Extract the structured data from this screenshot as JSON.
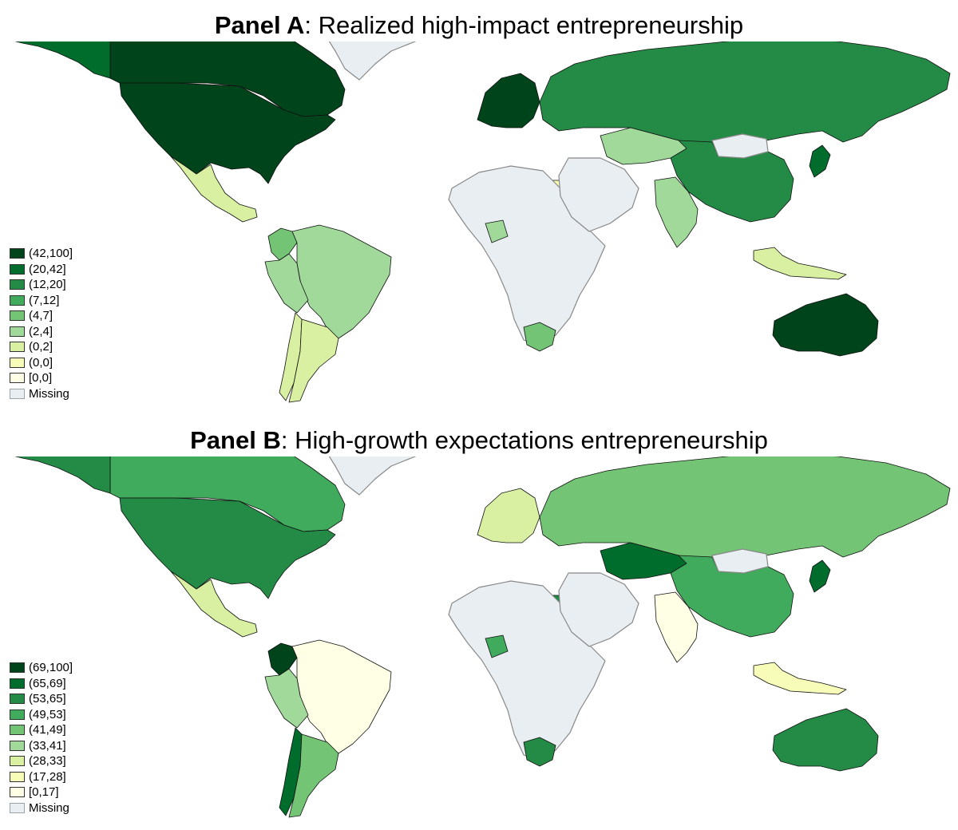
{
  "panels": [
    {
      "id": "a",
      "title_bold": "Panel A",
      "title_rest": ": Realized high-impact entrepreneurship",
      "legend": [
        {
          "label": "(42,100]",
          "color": "#00441b"
        },
        {
          "label": "(20,42]",
          "color": "#006d2c"
        },
        {
          "label": "(12,20]",
          "color": "#238b45"
        },
        {
          "label": "(7,12]",
          "color": "#41ab5d"
        },
        {
          "label": "(4,7]",
          "color": "#74c476"
        },
        {
          "label": "(2,4]",
          "color": "#a1d99b"
        },
        {
          "label": "(0,2]",
          "color": "#d9f0a3"
        },
        {
          "label": "(0,0]",
          "color": "#f7fcb9"
        },
        {
          "label": "[0,0]",
          "color": "#ffffe5"
        },
        {
          "label": "Missing",
          "color": "#e8eef2"
        }
      ],
      "regions": [
        {
          "name": "Canada",
          "class": 0
        },
        {
          "name": "United States",
          "class": 0
        },
        {
          "name": "Greenland",
          "class": 9
        },
        {
          "name": "Alaska",
          "class": 1
        },
        {
          "name": "Mexico",
          "class": 6
        },
        {
          "name": "Colombia",
          "class": 4
        },
        {
          "name": "Brazil",
          "class": 5
        },
        {
          "name": "Peru",
          "class": 5
        },
        {
          "name": "Chile",
          "class": 6
        },
        {
          "name": "Argentina",
          "class": 6
        },
        {
          "name": "Scandinavia",
          "class": 0
        },
        {
          "name": "Russia",
          "class": 2
        },
        {
          "name": "China",
          "class": 2
        },
        {
          "name": "Mongolia",
          "class": 9
        },
        {
          "name": "Kazakhstan",
          "class": 5
        },
        {
          "name": "India",
          "class": 5
        },
        {
          "name": "Egypt",
          "class": 7
        },
        {
          "name": "Africa",
          "class": 9
        },
        {
          "name": "Nigeria",
          "class": 5
        },
        {
          "name": "South Africa",
          "class": 4
        },
        {
          "name": "Middle East",
          "class": 9
        },
        {
          "name": "Australia",
          "class": 0
        },
        {
          "name": "Japan",
          "class": 1
        },
        {
          "name": "Indonesia",
          "class": 6
        }
      ]
    },
    {
      "id": "b",
      "title_bold": "Panel B",
      "title_rest": ": High-growth expectations entrepreneurship",
      "legend": [
        {
          "label": "(69,100]",
          "color": "#00441b"
        },
        {
          "label": "(65,69]",
          "color": "#006d2c"
        },
        {
          "label": "(53,65]",
          "color": "#238b45"
        },
        {
          "label": "(49,53]",
          "color": "#41ab5d"
        },
        {
          "label": "(41,49]",
          "color": "#74c476"
        },
        {
          "label": "(33,41]",
          "color": "#a1d99b"
        },
        {
          "label": "(28,33]",
          "color": "#d9f0a3"
        },
        {
          "label": "(17,28]",
          "color": "#f7fcb9"
        },
        {
          "label": "[0,17]",
          "color": "#ffffe5"
        },
        {
          "label": "Missing",
          "color": "#e8eef2"
        }
      ],
      "regions": [
        {
          "name": "Canada",
          "class": 3
        },
        {
          "name": "United States",
          "class": 2
        },
        {
          "name": "Greenland",
          "class": 9
        },
        {
          "name": "Alaska",
          "class": 2
        },
        {
          "name": "Mexico",
          "class": 6
        },
        {
          "name": "Colombia",
          "class": 0
        },
        {
          "name": "Brazil",
          "class": 8
        },
        {
          "name": "Peru",
          "class": 5
        },
        {
          "name": "Chile",
          "class": 1
        },
        {
          "name": "Argentina",
          "class": 4
        },
        {
          "name": "Scandinavia",
          "class": 6
        },
        {
          "name": "Russia",
          "class": 4
        },
        {
          "name": "China",
          "class": 3
        },
        {
          "name": "Mongolia",
          "class": 9
        },
        {
          "name": "Kazakhstan",
          "class": 1
        },
        {
          "name": "India",
          "class": 8
        },
        {
          "name": "Egypt",
          "class": 2
        },
        {
          "name": "Africa",
          "class": 9
        },
        {
          "name": "Nigeria",
          "class": 3
        },
        {
          "name": "South Africa",
          "class": 2
        },
        {
          "name": "Middle East",
          "class": 9
        },
        {
          "name": "Australia",
          "class": 2
        },
        {
          "name": "Japan",
          "class": 1
        },
        {
          "name": "Indonesia",
          "class": 7
        }
      ]
    }
  ]
}
